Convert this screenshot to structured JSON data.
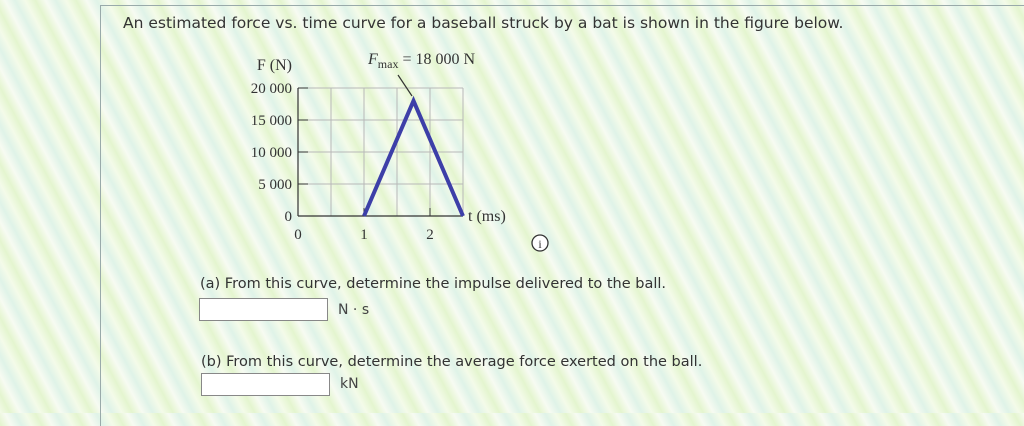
{
  "prompt": "An estimated force vs. time curve for a baseball struck by a bat is shown in the figure below.",
  "chart_data": {
    "type": "line",
    "ylabel": "F (N)",
    "xlabel": "t (ms)",
    "xlim": [
      0,
      2.5
    ],
    "ylim": [
      0,
      20000
    ],
    "x_ticks": [
      "0",
      "1",
      "2"
    ],
    "y_ticks": [
      "0",
      "5 000",
      "10 000",
      "15 000",
      "20 000"
    ],
    "grid": true,
    "series": [
      {
        "x": [
          1,
          1.75,
          2.5
        ],
        "y": [
          0,
          18000,
          0
        ],
        "color": "#3d3fa8"
      }
    ],
    "annotation": {
      "label_main": "F",
      "label_sub": "max",
      "label_rest": " = 18 000 N"
    }
  },
  "info_icon": "info-circle-icon",
  "questions": [
    {
      "label": "(a) From this curve, determine the impulse delivered to the ball.",
      "value": "",
      "unit": "N · s"
    },
    {
      "label": "(b) From this curve, determine the average force exerted on the ball.",
      "value": "",
      "unit": "kN"
    }
  ]
}
